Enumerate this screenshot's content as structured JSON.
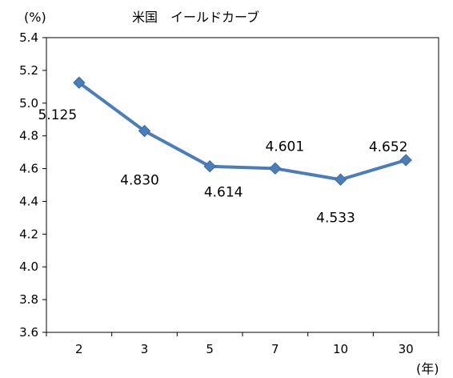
{
  "chart_data": {
    "type": "line",
    "title": "米国　イールドカーブ",
    "ylabel": "(%)",
    "xlabel": "(年)",
    "categories": [
      "2",
      "3",
      "5",
      "7",
      "10",
      "30"
    ],
    "series": [
      {
        "values": [
          5.125,
          4.83,
          4.614,
          4.601,
          4.533,
          4.652
        ],
        "labels": [
          "5.125",
          "4.830",
          "4.614",
          "4.601",
          "4.533",
          "4.652"
        ],
        "color": "#4a7ebb"
      }
    ],
    "ylim": [
      3.6,
      5.4
    ],
    "yticks": [
      "3.6",
      "3.8",
      "4.0",
      "4.2",
      "4.4",
      "4.6",
      "4.8",
      "5.0",
      "5.2",
      "5.4"
    ],
    "grid": false,
    "legend": "none"
  }
}
